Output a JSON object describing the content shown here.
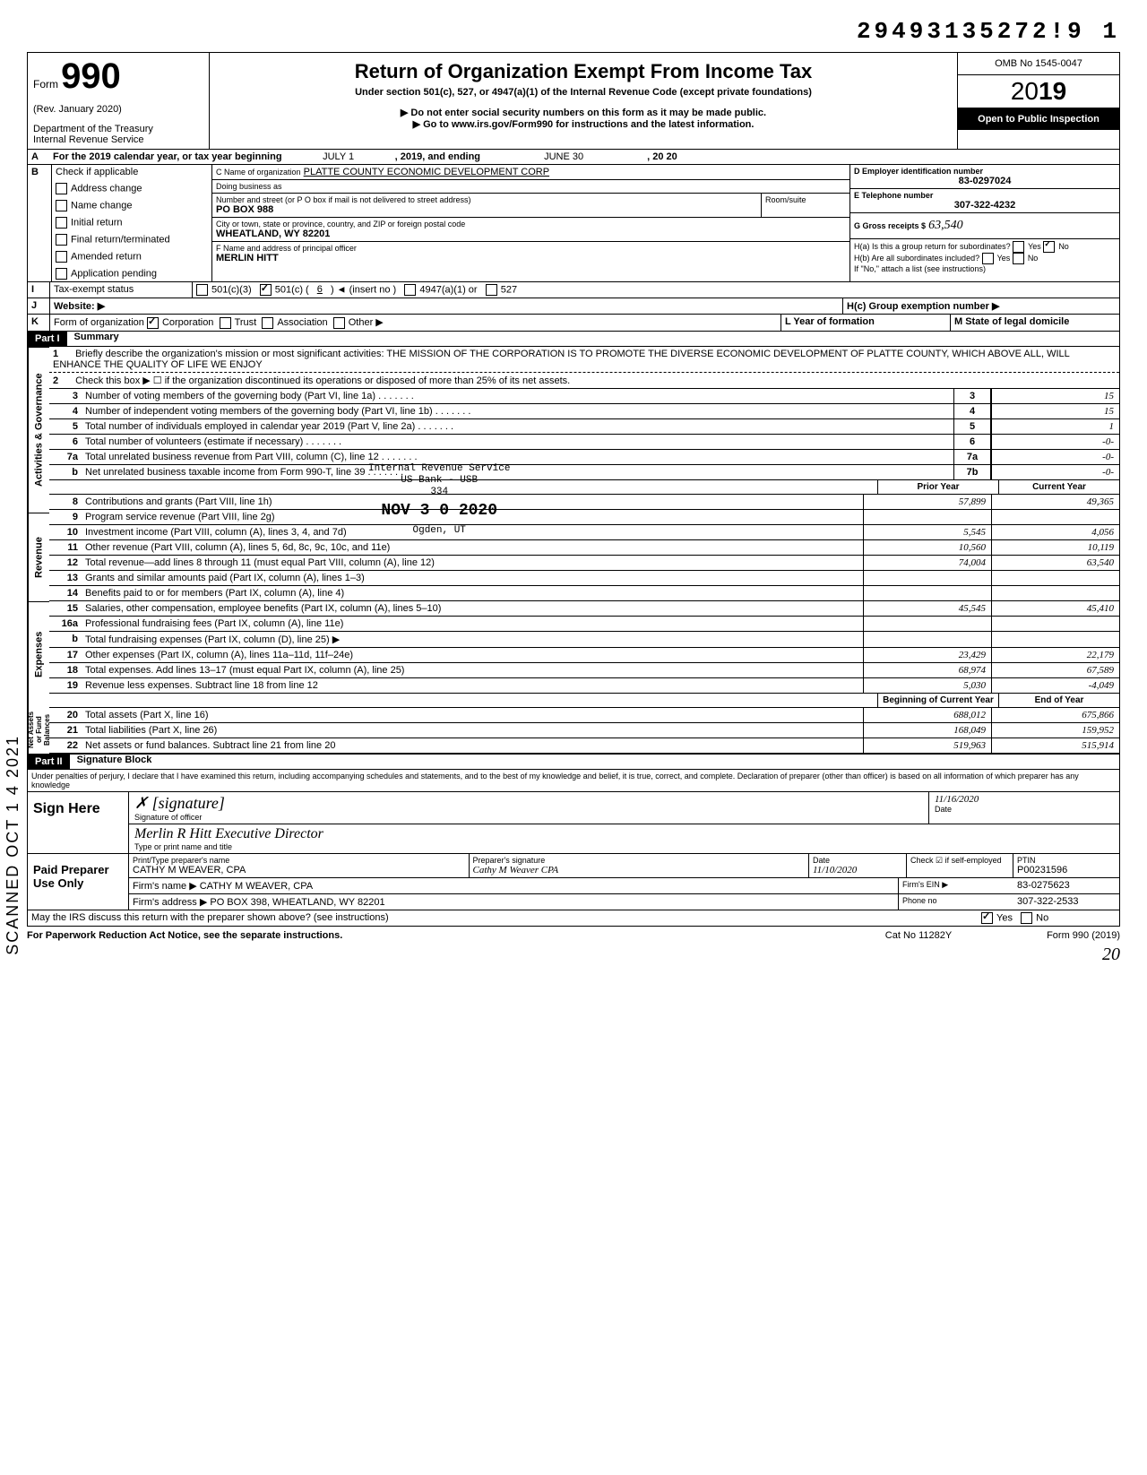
{
  "top_number": "29493135272!9 1",
  "form": {
    "word": "Form",
    "number": "990",
    "rev": "(Rev. January 2020)",
    "dept1": "Department of the Treasury",
    "dept2": "Internal Revenue Service",
    "title": "Return of Organization Exempt From Income Tax",
    "subtitle": "Under section 501(c), 527, or 4947(a)(1) of the Internal Revenue Code (except private foundations)",
    "warn": "Do not enter social security numbers on this form as it may be made public.",
    "goto": "Go to www.irs.gov/Form990 for instructions and the latest information.",
    "omb": "OMB No 1545-0047",
    "year": "2019",
    "open": "Open to Public Inspection"
  },
  "row_a": {
    "label": "A",
    "text1": "For the 2019 calendar year, or tax year beginning",
    "begin": "JULY 1",
    "mid": ", 2019, and ending",
    "end": "JUNE 30",
    "end2": ", 20  20"
  },
  "row_b": {
    "label": "B",
    "check_label": "Check if applicable",
    "checks": [
      "Address change",
      "Name change",
      "Initial return",
      "Final return/terminated",
      "Amended return",
      "Application pending"
    ],
    "c_name_label": "C Name of organization",
    "c_name": "PLATTE COUNTY ECONOMIC DEVELOPMENT CORP",
    "dba_label": "Doing business as",
    "addr_label": "Number and street (or P O  box if mail is not delivered to street address)",
    "addr": "PO BOX 988",
    "room_label": "Room/suite",
    "city_label": "City or town, state or province, country, and ZIP or foreign postal code",
    "city": "WHEATLAND, WY 82201",
    "f_label": "F Name and address of principal officer",
    "f_name": "MERLIN HITT",
    "d_label": "D Employer identification number",
    "d_val": "83-0297024",
    "e_label": "E Telephone number",
    "e_val": "307-322-4232",
    "g_label": "G Gross receipts $",
    "g_val": "63,540",
    "ha_label": "H(a) Is this a group return for subordinates?",
    "hb_label": "H(b) Are all subordinates included?",
    "h_note": "If \"No,\" attach a list (see instructions)",
    "yes": "Yes",
    "no": "No"
  },
  "row_i": {
    "label": "I",
    "text": "Tax-exempt status",
    "opts": [
      "501(c)(3)",
      "501(c) (",
      "6",
      ") ◄ (insert no )",
      "4947(a)(1) or",
      "527"
    ]
  },
  "row_j": {
    "label": "J",
    "text": "Website: ▶",
    "hc": "H(c) Group exemption number ▶"
  },
  "row_k": {
    "label": "K",
    "text": "Form of organization",
    "opts": [
      "Corporation",
      "Trust",
      "Association",
      "Other ▶"
    ],
    "l_label": "L Year of formation",
    "m_label": "M State of legal domicile"
  },
  "part1": {
    "header": "Part I",
    "title": "Summary"
  },
  "summary_sections": {
    "gov": "Activities & Governance",
    "rev": "Revenue",
    "exp": "Expenses",
    "net": "Net Assets or Fund Balances"
  },
  "lines": {
    "1": "Briefly describe the organization's mission or most significant activities:",
    "1_val": "THE MISSION OF THE CORPORATION IS TO PROMOTE THE DIVERSE ECONOMIC DEVELOPMENT OF PLATTE COUNTY, WHICH ABOVE ALL, WILL ENHANCE THE QUALITY OF LIFE WE ENJOY",
    "2": "Check this box ▶ ☐ if the organization discontinued its operations or disposed of more than 25% of its net assets.",
    "3": "Number of voting members of the governing body (Part VI, line 1a)",
    "4": "Number of independent voting members of the governing body (Part VI, line 1b)",
    "5": "Total number of individuals employed in calendar year 2019 (Part V, line 2a)",
    "6": "Total number of volunteers (estimate if necessary)",
    "7a": "Total unrelated business revenue from Part VIII, column (C), line 12",
    "7b": "Net unrelated business taxable income from Form 990-T, line 39",
    "8": "Contributions and grants (Part VIII, line 1h)",
    "9": "Program service revenue (Part VIII, line 2g)",
    "10": "Investment income (Part VIII, column (A), lines 3, 4, and 7d)",
    "11": "Other revenue (Part VIII, column (A), lines 5, 6d, 8c, 9c, 10c, and 11e)",
    "12": "Total revenue—add lines 8 through 11 (must equal Part VIII, column (A), line 12)",
    "13": "Grants and similar amounts paid (Part IX, column (A), lines 1–3)",
    "14": "Benefits paid to or for members (Part IX, column (A), line 4)",
    "15": "Salaries, other compensation, employee benefits (Part IX, column (A), lines 5–10)",
    "16a": "Professional fundraising fees (Part IX, column (A),  line 11e)",
    "16b": "Total fundraising expenses (Part IX, column (D), line 25) ▶",
    "17": "Other expenses (Part IX, column (A), lines 11a–11d, 11f–24e)",
    "18": "Total expenses. Add lines 13–17 (must equal Part IX, column (A), line 25)",
    "19": "Revenue less expenses. Subtract line 18 from line 12",
    "20": "Total assets (Part X, line 16)",
    "21": "Total liabilities (Part X, line 26)",
    "22": "Net assets or fund balances. Subtract line 21 from line 20"
  },
  "col_headers": {
    "prior": "Prior Year",
    "current": "Current Year",
    "begin": "Beginning of Current Year",
    "end": "End of Year"
  },
  "vals": {
    "3": "15",
    "4": "15",
    "5": "1",
    "6": "-0-",
    "7a": "-0-",
    "7b": "-0-",
    "8p": "57,899",
    "8c": "49,365",
    "9p": "",
    "9c": "",
    "10p": "5,545",
    "10c": "4,056",
    "11p": "10,560",
    "11c": "10,119",
    "12p": "74,004",
    "12c": "63,540",
    "15p": "45,545",
    "15c": "45,410",
    "17p": "23,429",
    "17c": "22,179",
    "18p": "68,974",
    "18c": "67,589",
    "19p": "5,030",
    "19c": "-4,049",
    "20p": "688,012",
    "20c": "675,866",
    "21p": "168,049",
    "21c": "159,952",
    "22p": "519,963",
    "22c": "515,914"
  },
  "stamp": {
    "l1": "Internal Revenue Service",
    "l2": "US Bank - USB",
    "l3": "334",
    "date": "NOV 3 0 2020",
    "l4": "Ogden, UT"
  },
  "part2": {
    "header": "Part II",
    "title": "Signature Block"
  },
  "perjury": "Under penalties of perjury, I declare that I have examined this return, including accompanying schedules and statements, and to the best of my knowledge and belief, it is true, correct, and complete. Declaration of preparer (other than officer) is based on all information of which preparer has any knowledge",
  "sign": {
    "here": "Sign Here",
    "sig_label": "Signature of officer",
    "date_label": "Date",
    "name_label": "Type or print name and title",
    "name_val": "Merlin R Hitt  Executive Director",
    "date_val": "11/16/2020"
  },
  "paid": {
    "label": "Paid Preparer Use Only",
    "col1": "Print/Type preparer's name",
    "col1v": "CATHY M WEAVER, CPA",
    "col2": "Preparer's signature",
    "col2v": "Cathy M Weaver CPA",
    "col3": "Date",
    "col3v": "11/10/2020",
    "check": "Check ☑ if self-employed",
    "ptin": "PTIN",
    "ptinv": "P00231596",
    "firm_name": "Firm's name ▶ CATHY M WEAVER, CPA",
    "firm_ein": "Firm's EIN ▶",
    "firm_einv": "83-0275623",
    "firm_addr": "Firm's address ▶ PO BOX 398, WHEATLAND, WY 82201",
    "phone": "Phone no",
    "phonev": "307-322-2533"
  },
  "bottom": {
    "discuss": "May the IRS discuss this return with the preparer shown above? (see instructions)",
    "yes": "Yes",
    "no": "No",
    "paperwork": "For Paperwork Reduction Act Notice, see the separate instructions.",
    "cat": "Cat No 11282Y",
    "form": "Form 990 (2019)"
  },
  "scanned": "SCANNED OCT 1 4 2021"
}
